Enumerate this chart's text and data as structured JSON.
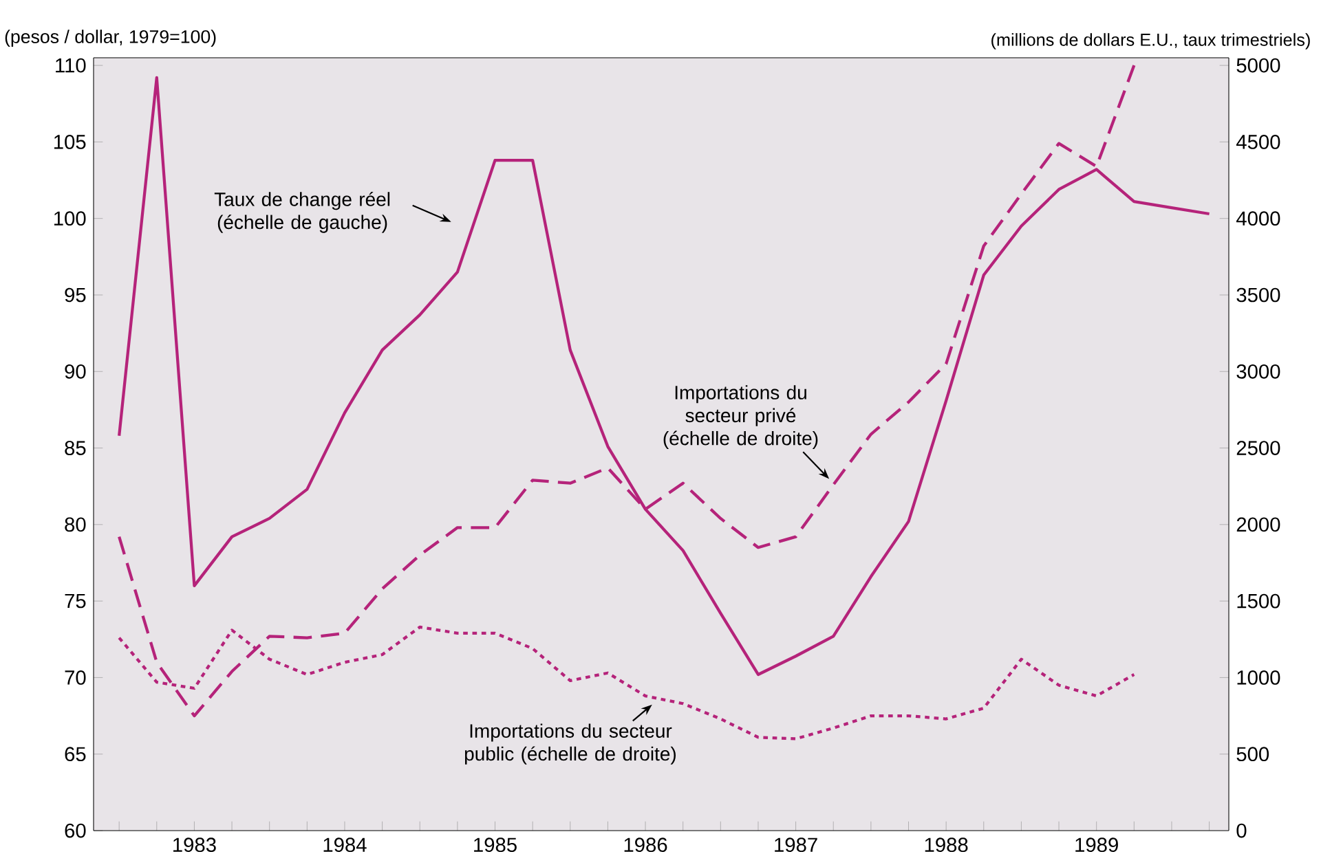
{
  "chart_data": {
    "type": "line",
    "ylabel": "(pesos / dollar, 1979=100)",
    "y2label": "(millions de dollars E.U., taux trimestriels)",
    "x": [
      1982.5,
      1982.75,
      1983,
      1983.25,
      1983.5,
      1983.75,
      1984,
      1984.25,
      1984.5,
      1984.75,
      1985,
      1985.25,
      1985.5,
      1985.75,
      1986,
      1986.25,
      1986.5,
      1986.75,
      1987,
      1987.25,
      1987.5,
      1987.75,
      1988,
      1988.25,
      1988.5,
      1988.75,
      1989,
      1989.25,
      1989.5,
      1989.75
    ],
    "series": [
      {
        "name": "Taux de change réel (échelle de gauche)",
        "color": "#b5237a",
        "line_style": "solid",
        "values": [
          85.8,
          109.2,
          76,
          79.2,
          80.4,
          82.3,
          87.3,
          91.4,
          93.7,
          96.5,
          103.8,
          103.8,
          91.4,
          85.1,
          81,
          78.3,
          74.2,
          70.2,
          71.4,
          72.7,
          76.6,
          80.2,
          88.1,
          96.3,
          99.5,
          101.9,
          103.2,
          101.1,
          100.7,
          100.3
        ]
      },
      {
        "name": "Importations du secteur privé (échelle de droite)",
        "color": "#b5237a",
        "line_style": "dashed",
        "axis": "y2",
        "values": [
          1920,
          1100,
          750,
          1040,
          1270,
          1260,
          1290,
          1580,
          1800,
          1980,
          1980,
          2290,
          2270,
          2370,
          2100,
          2270,
          2040,
          1850,
          1920,
          2260,
          2590,
          2800,
          3050,
          3820,
          4160,
          4490,
          4340,
          5000,
          null,
          null
        ]
      },
      {
        "name": "Importations du secteur public (échelle de droite)",
        "color": "#b5237a",
        "line_style": "dotted",
        "axis": "y2",
        "values": [
          1260,
          970,
          930,
          1310,
          1120,
          1020,
          1100,
          1150,
          1330,
          1290,
          1290,
          1190,
          980,
          1030,
          880,
          830,
          730,
          610,
          600,
          670,
          750,
          750,
          730,
          800,
          1120,
          950,
          880,
          1020,
          null,
          null
        ]
      }
    ],
    "xlim": [
      1982.33,
      1989.88
    ],
    "xticks": [
      {
        "value": 1982.5,
        "label": null
      },
      {
        "value": 1982.75,
        "label": null
      },
      1983,
      {
        "value": 1983.25,
        "label": null
      },
      {
        "value": 1983.5,
        "label": null
      },
      {
        "value": 1983.75,
        "label": null
      },
      1984,
      {
        "value": 1984.25,
        "label": null
      },
      {
        "value": 1984.5,
        "label": null
      },
      {
        "value": 1984.75,
        "label": null
      },
      1985,
      {
        "value": 1985.25,
        "label": null
      },
      {
        "value": 1985.5,
        "label": null
      },
      {
        "value": 1985.75,
        "label": null
      },
      1986,
      {
        "value": 1986.25,
        "label": null
      },
      {
        "value": 1986.5,
        "label": null
      },
      {
        "value": 1986.75,
        "label": null
      },
      1987,
      {
        "value": 1987.25,
        "label": null
      },
      {
        "value": 1987.5,
        "label": null
      },
      {
        "value": 1987.75,
        "label": null
      },
      1988,
      {
        "value": 1988.25,
        "label": null
      },
      {
        "value": 1988.5,
        "label": null
      },
      {
        "value": 1988.75,
        "label": null
      },
      1989,
      {
        "value": 1989.25,
        "label": null
      },
      {
        "value": 1989.5,
        "label": null
      },
      {
        "value": 1989.75,
        "label": null
      }
    ],
    "ylim": [
      60,
      110.5
    ],
    "yticks": [
      60,
      65,
      70,
      75,
      80,
      85,
      90,
      95,
      100,
      105,
      110
    ],
    "y2lim": [
      0,
      5050
    ],
    "y2ticks": [
      0,
      500,
      1000,
      1500,
      2000,
      2500,
      3000,
      3500,
      4000,
      4500,
      5000
    ],
    "grid": false,
    "legend": false
  }
}
